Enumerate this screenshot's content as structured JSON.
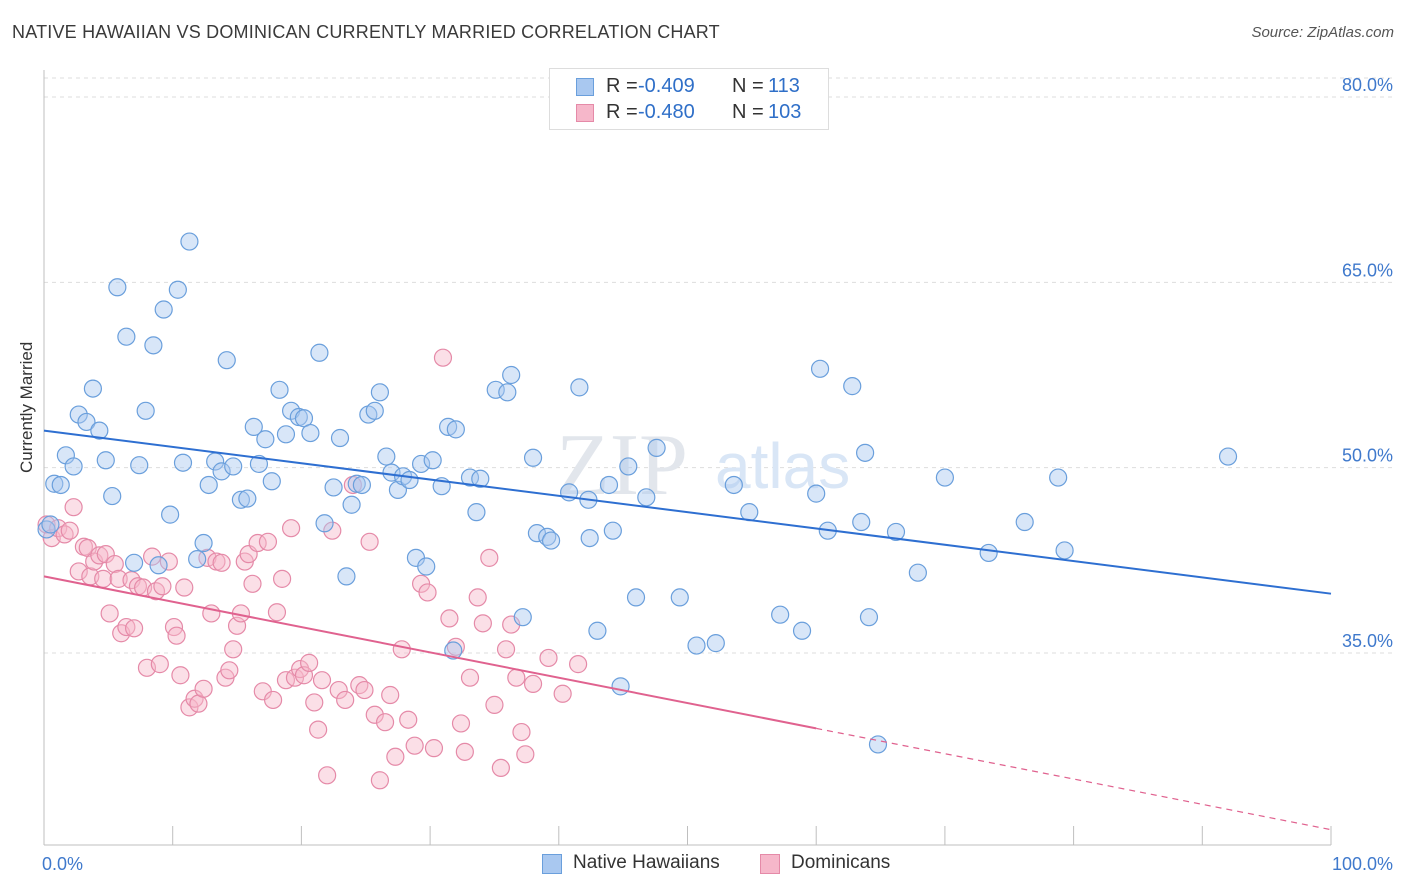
{
  "title": "NATIVE HAWAIIAN VS DOMINICAN CURRENTLY MARRIED CORRELATION CHART",
  "source": "Source: ZipAtlas.com",
  "watermark": {
    "zip": "ZIP",
    "atlas": "atlas"
  },
  "legend": {
    "r_label": "R =",
    "n_label": "N =",
    "rows": [
      {
        "r": "-0.409",
        "n": "113"
      },
      {
        "r": "-0.480",
        "n": "103"
      }
    ]
  },
  "colors": {
    "blue_fill": "#a9c8f0",
    "blue_stroke": "#6a9fdc",
    "blue_line": "#2e6fd1",
    "pink_fill": "#f6b7ca",
    "pink_stroke": "#e58aa8",
    "pink_line": "#e0628f",
    "tick_text": "#3f79cc",
    "grid": "#dddddd"
  },
  "chart_data": {
    "type": "scatter",
    "title": "NATIVE HAWAIIAN VS DOMINICAN CURRENTLY MARRIED CORRELATION CHART",
    "xlabel": "",
    "ylabel": "Currently Married",
    "xlim": [
      0,
      100
    ],
    "ylim": [
      20,
      83
    ],
    "x_ticks": [
      "0.0%",
      "100.0%"
    ],
    "y_ticks": [
      {
        "value": 35,
        "label": "35.0%"
      },
      {
        "value": 50,
        "label": "50.0%"
      },
      {
        "value": 65,
        "label": "65.0%"
      },
      {
        "value": 80,
        "label": "80.0%"
      }
    ],
    "grid": true,
    "legend_position": "top-center",
    "series": [
      {
        "name": "Native Hawaiians",
        "r": -0.409,
        "n": 113,
        "trend": {
          "x": [
            0,
            100
          ],
          "y": [
            53.0,
            39.8
          ],
          "dashed_from": null
        },
        "points": [
          [
            0.2,
            45.0
          ],
          [
            0.5,
            45.4
          ],
          [
            0.8,
            48.7
          ],
          [
            1.3,
            48.6
          ],
          [
            1.7,
            51.0
          ],
          [
            2.3,
            50.1
          ],
          [
            2.7,
            54.3
          ],
          [
            3.3,
            53.7
          ],
          [
            3.8,
            56.4
          ],
          [
            4.3,
            53.0
          ],
          [
            4.8,
            50.6
          ],
          [
            5.3,
            47.7
          ],
          [
            5.7,
            64.6
          ],
          [
            6.4,
            60.6
          ],
          [
            7.0,
            42.3
          ],
          [
            7.4,
            50.2
          ],
          [
            7.9,
            54.6
          ],
          [
            8.5,
            59.9
          ],
          [
            8.9,
            42.1
          ],
          [
            9.3,
            62.8
          ],
          [
            9.8,
            46.2
          ],
          [
            10.4,
            64.4
          ],
          [
            10.8,
            50.4
          ],
          [
            11.3,
            68.3
          ],
          [
            11.9,
            42.6
          ],
          [
            12.4,
            43.9
          ],
          [
            12.8,
            48.6
          ],
          [
            13.3,
            50.5
          ],
          [
            13.8,
            49.7
          ],
          [
            14.2,
            58.7
          ],
          [
            14.7,
            50.1
          ],
          [
            15.3,
            47.4
          ],
          [
            15.8,
            47.5
          ],
          [
            16.3,
            53.3
          ],
          [
            16.7,
            50.3
          ],
          [
            17.2,
            52.3
          ],
          [
            17.7,
            48.9
          ],
          [
            18.3,
            56.3
          ],
          [
            18.8,
            52.7
          ],
          [
            19.2,
            54.6
          ],
          [
            19.8,
            54.1
          ],
          [
            20.2,
            54.0
          ],
          [
            20.7,
            52.8
          ],
          [
            21.4,
            59.3
          ],
          [
            21.8,
            45.5
          ],
          [
            22.5,
            48.4
          ],
          [
            23.0,
            52.4
          ],
          [
            23.5,
            41.2
          ],
          [
            23.9,
            47.0
          ],
          [
            24.3,
            48.7
          ],
          [
            24.7,
            48.6
          ],
          [
            25.2,
            54.3
          ],
          [
            25.7,
            54.6
          ],
          [
            26.1,
            56.1
          ],
          [
            26.6,
            50.9
          ],
          [
            27.0,
            49.6
          ],
          [
            27.5,
            48.2
          ],
          [
            27.9,
            49.3
          ],
          [
            28.4,
            49.0
          ],
          [
            28.9,
            42.7
          ],
          [
            29.3,
            50.3
          ],
          [
            29.7,
            42.0
          ],
          [
            30.2,
            50.6
          ],
          [
            30.9,
            48.5
          ],
          [
            31.4,
            53.3
          ],
          [
            32.0,
            53.1
          ],
          [
            31.8,
            35.2
          ],
          [
            33.1,
            49.2
          ],
          [
            33.6,
            46.4
          ],
          [
            33.9,
            49.1
          ],
          [
            35.1,
            56.3
          ],
          [
            36.0,
            56.1
          ],
          [
            36.3,
            57.5
          ],
          [
            37.2,
            37.9
          ],
          [
            38.0,
            50.8
          ],
          [
            38.3,
            44.7
          ],
          [
            39.1,
            44.4
          ],
          [
            39.4,
            44.1
          ],
          [
            40.8,
            48.0
          ],
          [
            41.6,
            56.5
          ],
          [
            42.3,
            47.4
          ],
          [
            42.4,
            44.3
          ],
          [
            43.0,
            36.8
          ],
          [
            43.9,
            48.6
          ],
          [
            44.2,
            44.9
          ],
          [
            45.4,
            50.1
          ],
          [
            46.0,
            39.5
          ],
          [
            46.8,
            47.6
          ],
          [
            47.6,
            51.6
          ],
          [
            49.4,
            39.5
          ],
          [
            50.7,
            35.6
          ],
          [
            52.2,
            35.8
          ],
          [
            53.6,
            48.6
          ],
          [
            54.8,
            46.4
          ],
          [
            57.2,
            38.1
          ],
          [
            58.9,
            36.8
          ],
          [
            60.0,
            47.9
          ],
          [
            60.3,
            58.0
          ],
          [
            60.9,
            44.9
          ],
          [
            62.8,
            56.6
          ],
          [
            63.5,
            45.6
          ],
          [
            63.8,
            51.2
          ],
          [
            64.1,
            37.9
          ],
          [
            66.2,
            44.8
          ],
          [
            67.9,
            41.5
          ],
          [
            70.0,
            49.2
          ],
          [
            73.4,
            43.1
          ],
          [
            76.2,
            45.6
          ],
          [
            78.8,
            49.2
          ],
          [
            79.3,
            43.3
          ],
          [
            64.8,
            27.6
          ],
          [
            44.8,
            32.3
          ],
          [
            92.0,
            50.9
          ]
        ]
      },
      {
        "name": "Dominicans",
        "r": -0.48,
        "n": 103,
        "trend": {
          "x": [
            0,
            100
          ],
          "y": [
            41.2,
            20.7
          ],
          "dashed_from": 60
        },
        "points": [
          [
            0.2,
            45.4
          ],
          [
            0.6,
            44.3
          ],
          [
            1.1,
            45.1
          ],
          [
            1.6,
            44.6
          ],
          [
            2.0,
            44.9
          ],
          [
            2.3,
            46.8
          ],
          [
            2.7,
            41.6
          ],
          [
            3.1,
            43.6
          ],
          [
            3.4,
            43.5
          ],
          [
            3.6,
            41.2
          ],
          [
            3.9,
            42.4
          ],
          [
            4.3,
            42.9
          ],
          [
            4.6,
            41.0
          ],
          [
            4.8,
            43.0
          ],
          [
            5.1,
            38.2
          ],
          [
            5.5,
            42.2
          ],
          [
            5.8,
            41.0
          ],
          [
            6.0,
            36.6
          ],
          [
            6.4,
            37.1
          ],
          [
            6.8,
            40.9
          ],
          [
            7.0,
            37.0
          ],
          [
            7.3,
            40.4
          ],
          [
            7.7,
            40.3
          ],
          [
            8.0,
            33.8
          ],
          [
            8.4,
            42.8
          ],
          [
            8.7,
            40.0
          ],
          [
            9.0,
            34.1
          ],
          [
            9.2,
            40.4
          ],
          [
            9.7,
            42.4
          ],
          [
            10.1,
            37.1
          ],
          [
            10.3,
            36.4
          ],
          [
            10.6,
            33.2
          ],
          [
            10.9,
            40.3
          ],
          [
            11.3,
            30.6
          ],
          [
            11.7,
            31.3
          ],
          [
            12.0,
            30.9
          ],
          [
            12.4,
            32.1
          ],
          [
            12.7,
            42.7
          ],
          [
            13.0,
            38.2
          ],
          [
            13.4,
            42.4
          ],
          [
            13.8,
            42.3
          ],
          [
            14.1,
            33.0
          ],
          [
            14.4,
            33.6
          ],
          [
            14.7,
            35.3
          ],
          [
            15.0,
            37.2
          ],
          [
            15.3,
            38.2
          ],
          [
            15.6,
            42.4
          ],
          [
            15.9,
            43.0
          ],
          [
            16.2,
            40.6
          ],
          [
            16.6,
            43.9
          ],
          [
            17.0,
            31.9
          ],
          [
            17.4,
            44.0
          ],
          [
            17.8,
            31.2
          ],
          [
            18.1,
            38.3
          ],
          [
            18.5,
            41.0
          ],
          [
            18.8,
            32.8
          ],
          [
            19.2,
            45.1
          ],
          [
            19.5,
            33.0
          ],
          [
            19.9,
            33.7
          ],
          [
            20.2,
            33.2
          ],
          [
            20.6,
            34.2
          ],
          [
            21.0,
            31.0
          ],
          [
            21.3,
            28.8
          ],
          [
            21.6,
            32.8
          ],
          [
            22.0,
            25.1
          ],
          [
            22.4,
            44.9
          ],
          [
            22.9,
            32.0
          ],
          [
            23.4,
            31.2
          ],
          [
            24.0,
            48.6
          ],
          [
            24.5,
            32.4
          ],
          [
            24.9,
            32.0
          ],
          [
            25.3,
            44.0
          ],
          [
            25.7,
            30.0
          ],
          [
            26.1,
            24.7
          ],
          [
            26.5,
            29.4
          ],
          [
            26.9,
            31.6
          ],
          [
            27.3,
            26.6
          ],
          [
            27.8,
            35.3
          ],
          [
            28.3,
            29.6
          ],
          [
            28.8,
            27.5
          ],
          [
            29.3,
            40.6
          ],
          [
            29.8,
            39.9
          ],
          [
            30.3,
            27.3
          ],
          [
            31.0,
            58.9
          ],
          [
            31.5,
            37.8
          ],
          [
            32.0,
            35.5
          ],
          [
            32.4,
            29.3
          ],
          [
            32.7,
            27.0
          ],
          [
            33.1,
            33.0
          ],
          [
            33.7,
            39.5
          ],
          [
            34.1,
            37.4
          ],
          [
            34.6,
            42.7
          ],
          [
            35.0,
            30.8
          ],
          [
            35.5,
            25.7
          ],
          [
            35.9,
            35.3
          ],
          [
            36.3,
            37.3
          ],
          [
            36.7,
            33.0
          ],
          [
            37.1,
            28.6
          ],
          [
            37.4,
            26.8
          ],
          [
            38.0,
            32.5
          ],
          [
            39.2,
            34.6
          ],
          [
            40.3,
            31.7
          ],
          [
            41.5,
            34.1
          ]
        ]
      }
    ]
  },
  "bottom_legend": [
    "Native Hawaiians",
    "Dominicans"
  ]
}
